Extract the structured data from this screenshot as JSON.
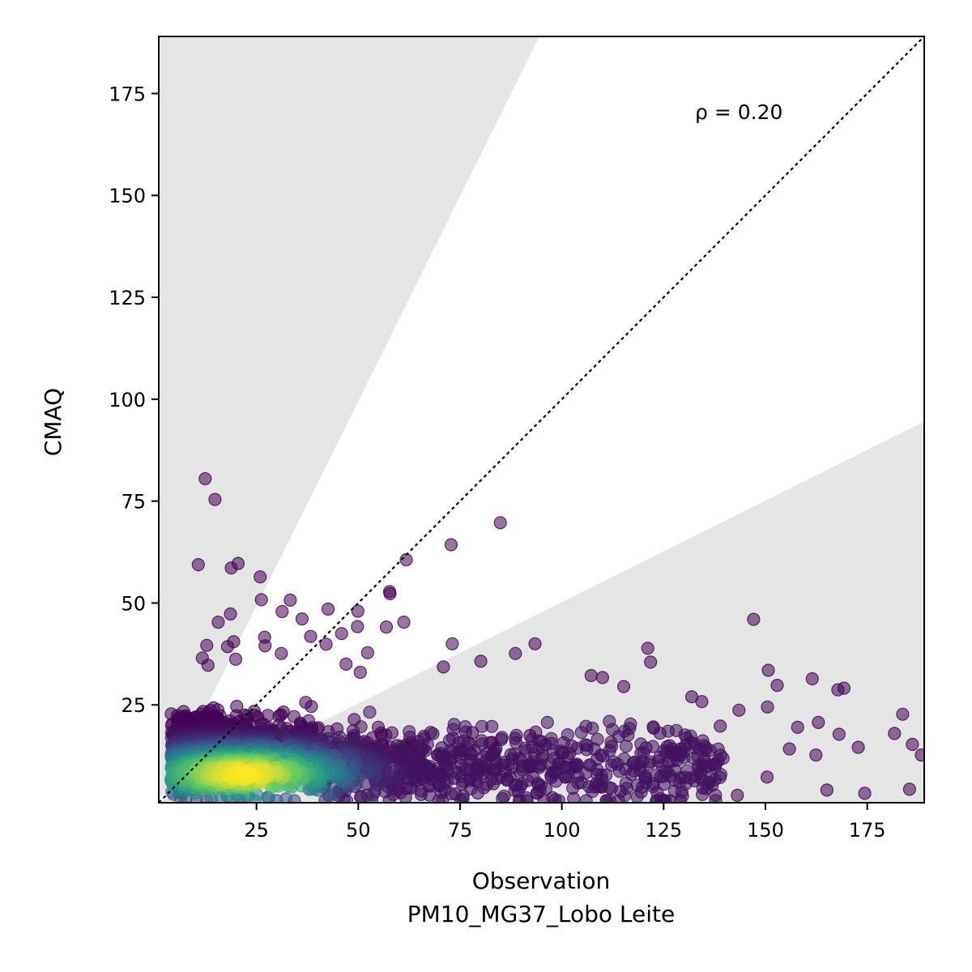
{
  "chart_data": {
    "type": "scatter",
    "title": "",
    "xlabel": "Observation",
    "xlabel_line2": "PM10_MG37_Lobo Leite",
    "ylabel": "CMAQ",
    "xlim": [
      1,
      189
    ],
    "ylim": [
      1,
      189
    ],
    "xticks": [
      25,
      50,
      75,
      100,
      125,
      150,
      175
    ],
    "yticks": [
      25,
      50,
      75,
      100,
      125,
      150,
      175
    ],
    "annotation": "ρ = 0.20",
    "reference_line": {
      "style": "dotted",
      "slope": 1,
      "color": "#000000"
    },
    "shaded_band": {
      "color": "#e5e5e5",
      "description": "region outside factor-of-2 agreement",
      "lower_slope": 0.5,
      "upper_slope": 2
    },
    "colormap": "viridis",
    "colors": [
      "#440154",
      "#3b528b",
      "#21918c",
      "#5ec962",
      "#fde725"
    ],
    "grid": false,
    "legend": "none",
    "points": [
      [
        12.4,
        80.5
      ],
      [
        14.8,
        75.4
      ],
      [
        84.9,
        69.7
      ],
      [
        72.8,
        64.3
      ],
      [
        61.8,
        60.6
      ],
      [
        10.7,
        59.4
      ],
      [
        20.5,
        59.7
      ],
      [
        18.8,
        58.6
      ],
      [
        25.9,
        56.4
      ],
      [
        57.7,
        52.8
      ],
      [
        57.8,
        52.3
      ],
      [
        33.3,
        50.7
      ],
      [
        26.2,
        50.8
      ],
      [
        42.6,
        48.5
      ],
      [
        18.6,
        47.3
      ],
      [
        31.3,
        47.9
      ],
      [
        49.9,
        48.0
      ],
      [
        36.2,
        46.1
      ],
      [
        147.1,
        46.0
      ],
      [
        15.6,
        45.3
      ],
      [
        61.2,
        45.3
      ],
      [
        56.9,
        44.1
      ],
      [
        49.8,
        44.2
      ],
      [
        45.9,
        42.5
      ],
      [
        27.0,
        41.6
      ],
      [
        19.4,
        40.5
      ],
      [
        38.3,
        41.8
      ],
      [
        73.1,
        40.0
      ],
      [
        12.8,
        39.6
      ],
      [
        17.9,
        39.3
      ],
      [
        93.4,
        40.0
      ],
      [
        27.1,
        39.5
      ],
      [
        42.1,
        39.9
      ],
      [
        121.1,
        38.9
      ],
      [
        88.6,
        37.6
      ],
      [
        52.3,
        37.8
      ],
      [
        31.1,
        37.6
      ],
      [
        19.9,
        36.2
      ],
      [
        11.7,
        36.5
      ],
      [
        80.1,
        35.7
      ],
      [
        121.8,
        35.5
      ],
      [
        13.1,
        34.7
      ],
      [
        70.9,
        34.3
      ],
      [
        47.0,
        35.0
      ],
      [
        150.7,
        33.5
      ],
      [
        50.5,
        33.0
      ],
      [
        107.2,
        32.2
      ],
      [
        110.0,
        31.7
      ],
      [
        161.5,
        31.4
      ],
      [
        152.9,
        29.8
      ],
      [
        169.3,
        29.1
      ],
      [
        167.8,
        28.7
      ],
      [
        115.2,
        29.5
      ],
      [
        131.9,
        27.0
      ],
      [
        134.4,
        25.8
      ],
      [
        143.5,
        23.7
      ],
      [
        150.5,
        24.5
      ],
      [
        163.0,
        20.7
      ],
      [
        157.9,
        19.5
      ],
      [
        183.7,
        22.7
      ],
      [
        138.9,
        19.8
      ],
      [
        168.1,
        17.8
      ],
      [
        181.7,
        18.0
      ],
      [
        155.9,
        14.2
      ],
      [
        172.8,
        14.6
      ],
      [
        186.1,
        15.3
      ],
      [
        162.4,
        12.7
      ],
      [
        188.3,
        12.7
      ],
      [
        150.4,
        7.3
      ],
      [
        165.1,
        4.1
      ],
      [
        174.4,
        3.3
      ],
      [
        185.4,
        4.3
      ],
      [
        143.1,
        2.8
      ]
    ]
  }
}
